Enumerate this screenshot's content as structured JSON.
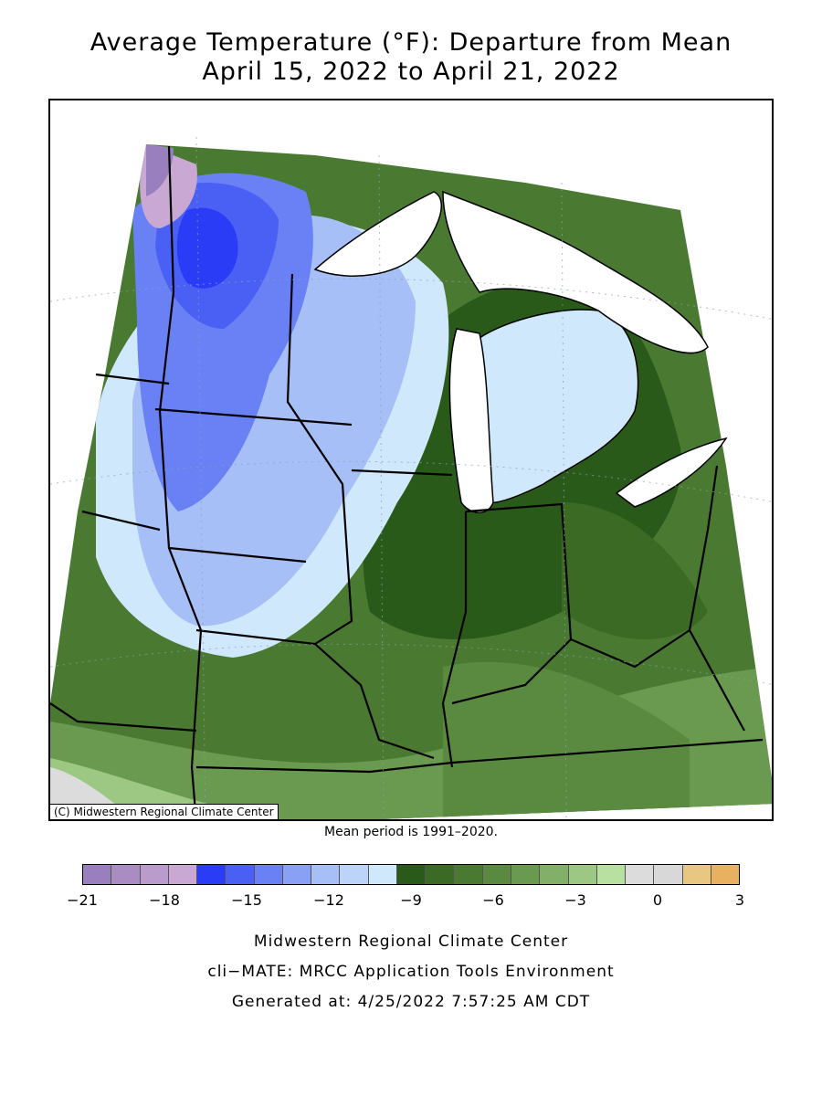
{
  "title_line1": "Average Temperature (°F): Departure from Mean",
  "title_line2": "April 15, 2022 to April 21, 2022",
  "copyright": "(C) Midwestern Regional Climate Center",
  "mean_note": "Mean period is 1991–2020.",
  "legend": {
    "colors": [
      "#9a7fbf",
      "#a88cc2",
      "#b99ccb",
      "#c9a9d3",
      "#2a3cf5",
      "#4a60f5",
      "#6a80f5",
      "#8aa0f5",
      "#a6bff7",
      "#bcd4f9",
      "#d0e8fb",
      "#2a5a1a",
      "#3a6a24",
      "#4a7a32",
      "#5a8a40",
      "#6a9a50",
      "#82b068",
      "#9cc883",
      "#b8e0a0",
      "#dcdcdc",
      "#d8d8d8",
      "#e8c880",
      "#e8b060"
    ],
    "tick_labels": [
      "−21",
      "−18",
      "−15",
      "−12",
      "−9",
      "−6",
      "−3",
      "0",
      "3"
    ]
  },
  "footer": {
    "line1": "Midwestern Regional Climate Center",
    "line2": "cli−MATE: MRCC Application Tools Environment",
    "line3": "Generated at: 4/25/2022 7:57:25 AM CDT"
  }
}
